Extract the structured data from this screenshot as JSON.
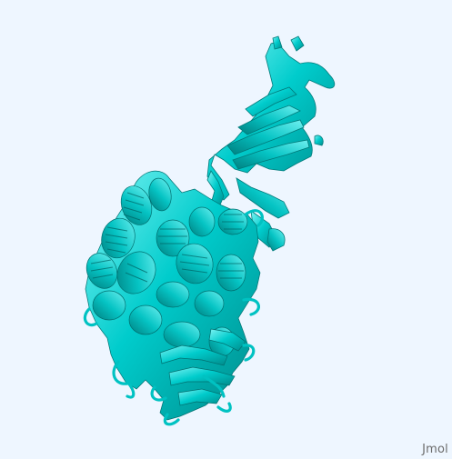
{
  "viewer": {
    "watermark": "Jmol",
    "background_color": "#eef6ff",
    "ribbon_color": "#00cccc",
    "ribbon_shadow_color": "#008a8a",
    "ribbon_highlight_color": "#7ff4f4"
  }
}
